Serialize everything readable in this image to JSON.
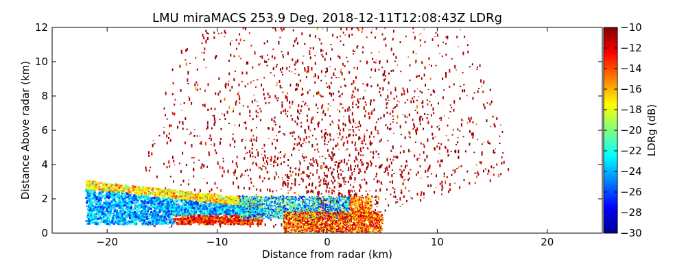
{
  "chart_data": {
    "type": "heatmap",
    "title": "LMU miraMACS 253.9 Deg. 2018-12-11T12:08:43Z  LDRg",
    "xlabel": "Distance from radar (km)",
    "ylabel": "Distance Above radar  (km)",
    "xlim": [
      -25,
      25
    ],
    "ylim": [
      0,
      12
    ],
    "xticks": [
      -20,
      -10,
      0,
      10,
      20
    ],
    "yticks": [
      0,
      2,
      4,
      6,
      8,
      10,
      12
    ],
    "colorbar": {
      "label": "LDRg (dB)",
      "range": [
        -30,
        -10
      ],
      "ticks": [
        -10,
        -12,
        -14,
        -16,
        -18,
        -20,
        -22,
        -24,
        -26,
        -28,
        -30
      ],
      "colormap": "jet"
    },
    "grid": false,
    "scan_elevation_deg": 253.9,
    "field": "LDRg",
    "regions": [
      {
        "name": "sparse-high-ldr-sector",
        "x_range": [
          -22,
          22
        ],
        "y_range": [
          0.4,
          12
        ],
        "value_db": -10
      },
      {
        "name": "low-level-band-west",
        "x_range": [
          -22,
          -6
        ],
        "y_range": [
          0.4,
          3.0
        ],
        "value_db": -25
      },
      {
        "name": "low-level-band-center",
        "x_range": [
          -6,
          3
        ],
        "y_range": [
          0.8,
          2.0
        ],
        "value_db": -27
      },
      {
        "name": "near-radar-clutter",
        "x_range": [
          -4,
          5
        ],
        "y_range": [
          0,
          1.2
        ],
        "value_db": -12
      }
    ]
  }
}
